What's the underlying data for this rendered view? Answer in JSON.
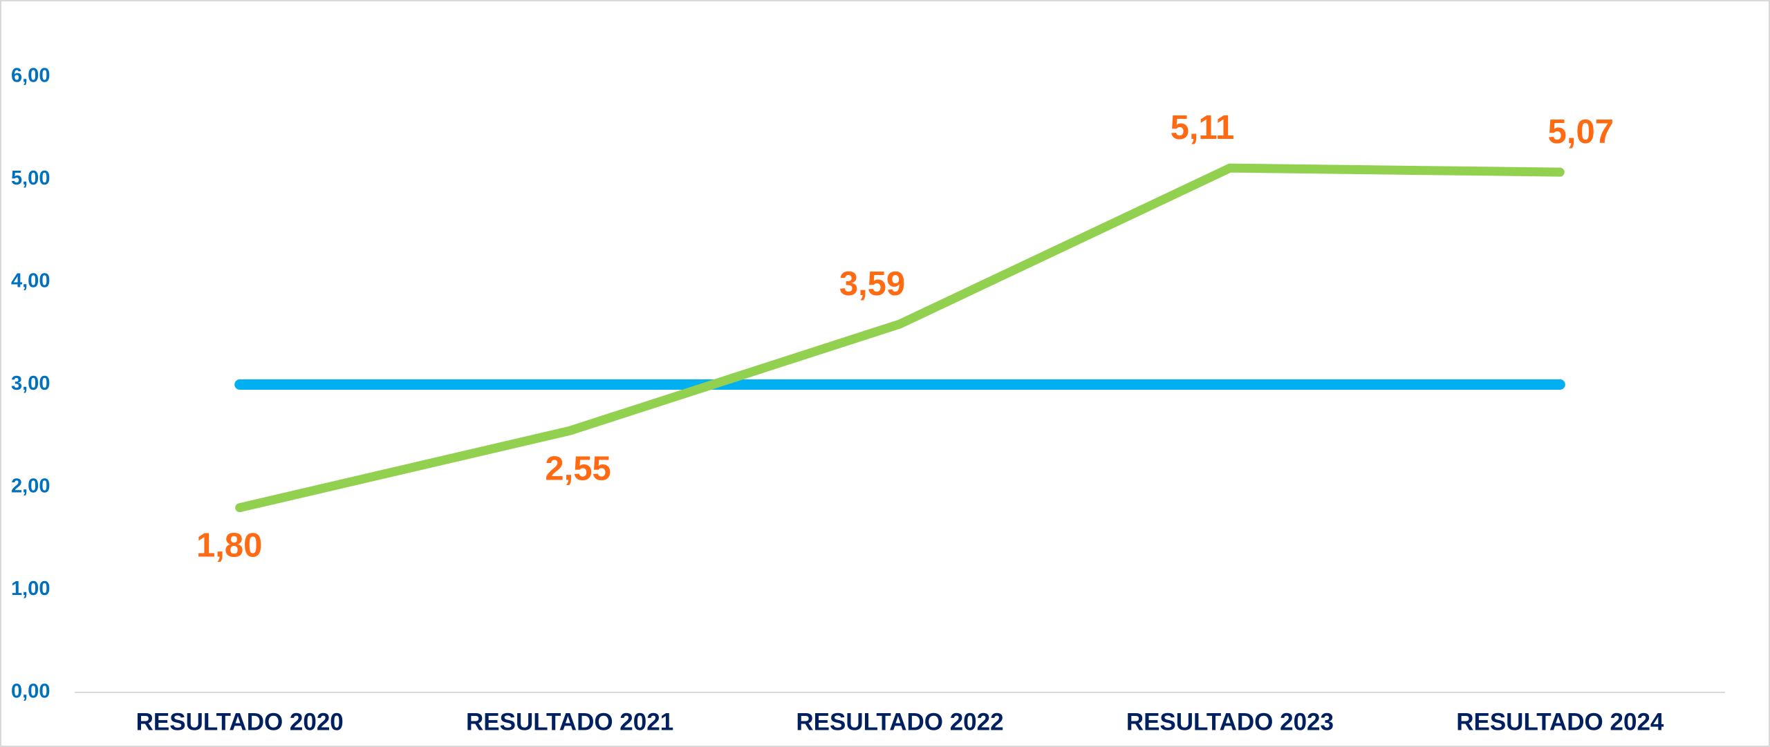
{
  "chart_data": {
    "type": "line",
    "categories": [
      "RESULTADO 2020",
      "RESULTADO 2021",
      "RESULTADO 2022",
      "RESULTADO 2023",
      "RESULTADO 2024"
    ],
    "series": [
      {
        "color": "#92d050",
        "values": [
          1.8,
          2.55,
          3.59,
          5.11,
          5.07
        ],
        "value_labels": [
          "1,80",
          "2,55",
          "3,59",
          "5,11",
          "5,07"
        ]
      },
      {
        "color": "#00b0f0",
        "values": [
          3.0,
          3.0,
          3.0,
          3.0,
          3.0
        ]
      }
    ],
    "ylim": [
      0,
      6.5
    ],
    "yticks": [
      {
        "value": 0,
        "label": "0,00"
      },
      {
        "value": 1,
        "label": "1,00"
      },
      {
        "value": 2,
        "label": "2,00"
      },
      {
        "value": 3,
        "label": "3,00"
      },
      {
        "value": 4,
        "label": "4,00"
      },
      {
        "value": 5,
        "label": "5,00"
      },
      {
        "value": 6,
        "label": "6,00"
      }
    ],
    "grid": false
  }
}
